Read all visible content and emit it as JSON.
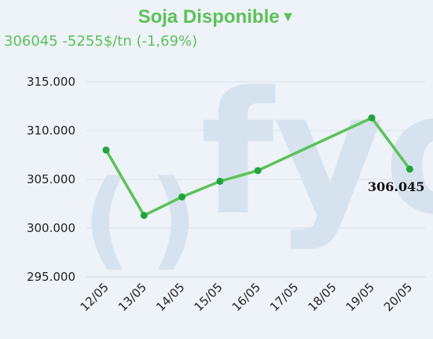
{
  "header": {
    "title": "Soja Disponible",
    "trend_arrow": "▼",
    "quote": "306045 -5255$/tn (-1,69%)"
  },
  "colors": {
    "accent": "#5cc257",
    "line": "#5cc257",
    "marker": "#22a43a",
    "background": "#eef2f9",
    "watermark": "#d6e3ee"
  },
  "chart_data": {
    "type": "line",
    "categories": [
      "12/05",
      "13/05",
      "14/05",
      "15/05",
      "16/05",
      "17/05",
      "18/05",
      "19/05",
      "20/05"
    ],
    "series": [
      {
        "values": [
          308000,
          301300,
          303200,
          304800,
          305900,
          null,
          null,
          311300,
          306045
        ]
      }
    ],
    "y_ticks": [
      "295.000",
      "300.000",
      "305.000",
      "310.000",
      "315.000"
    ],
    "ylim": [
      295000,
      315000
    ],
    "last_value_label": "306.045",
    "grid": true,
    "watermark_text": "()fyo"
  }
}
